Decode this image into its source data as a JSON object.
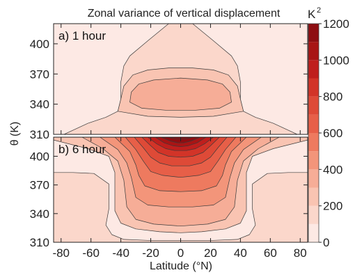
{
  "chart_data": {
    "type": "heatmap",
    "title": "Zonal variance of vertical displacement",
    "xlabel": "Latitude (°N)",
    "ylabel": "θ (K)",
    "x_ticks": [
      "-80",
      "-60",
      "-40",
      "-20",
      "0",
      "20",
      "40",
      "60",
      "80"
    ],
    "x_tick_values": [
      -80,
      -60,
      -40,
      -20,
      0,
      20,
      40,
      60,
      80
    ],
    "xlim": [
      -85,
      85
    ],
    "colorbar": {
      "unit": "K",
      "unit_superscript": "2",
      "tick_labels": [
        "0",
        "200",
        "400",
        "600",
        "800",
        "1000",
        "1200"
      ],
      "tick_values": [
        0,
        200,
        400,
        600,
        800,
        1000,
        1200
      ],
      "levels": [
        0,
        100,
        200,
        300,
        400,
        500,
        600,
        700,
        800,
        900,
        1000,
        1100,
        1200
      ],
      "colors": [
        "#fde9e4",
        "#fbd7cb",
        "#f9c4b2",
        "#f6ad97",
        "#f3957a",
        "#ee7a5f",
        "#e75f48",
        "#de4a37",
        "#d23428",
        "#bf1f1d",
        "#a81515",
        "#8e0e12"
      ]
    },
    "panels": [
      {
        "label": "a) 1 hour",
        "ylim": [
          310,
          420
        ],
        "y_ticks": [
          "310",
          "340",
          "370",
          "400"
        ],
        "y_tick_values": [
          310,
          340,
          370,
          400
        ],
        "contours": [
          {
            "level": 100,
            "lat": [
              -78,
              -62,
              -50,
              -42,
              -40,
              -40,
              -38,
              -34,
              -22,
              -8,
              8,
              22,
              34,
              38,
              40,
              40,
              42,
              50,
              62,
              78
            ],
            "theta": [
              310,
              321,
              327,
              333,
              345,
              362,
              378,
              388,
              403,
              420,
              420,
              403,
              388,
              378,
              362,
              345,
              333,
              327,
              321,
              310
            ]
          },
          {
            "level": 200,
            "lat": [
              -42,
              -40,
              -38,
              -32,
              -22,
              -8,
              8,
              22,
              32,
              38,
              40,
              42,
              22,
              0,
              -22
            ],
            "theta": [
              333,
              345,
              358,
              369,
              374,
              376,
              376,
              374,
              369,
              358,
              345,
              333,
              328,
              327,
              328
            ]
          },
          {
            "level": 300,
            "lat": [
              -34,
              -33,
              -28,
              -18,
              0,
              18,
              28,
              33,
              34,
              26,
              10,
              -10,
              -26
            ],
            "theta": [
              342,
              352,
              360,
              364,
              366,
              364,
              360,
              352,
              342,
              336,
              334,
              334,
              336
            ]
          }
        ]
      },
      {
        "label": "b) 6 hour",
        "ylim": [
          310,
          420
        ],
        "y_ticks": [
          "310",
          "340",
          "370",
          "400"
        ],
        "y_tick_values": [
          310,
          340,
          370,
          400
        ],
        "contours": [
          {
            "level": 100,
            "lat": [
              -85,
              -72,
              -58,
              -48,
              -48,
              -50,
              -46,
              -38,
              -22,
              -8,
              8,
              22,
              38,
              46,
              50,
              48,
              48,
              58,
              72,
              85,
              85,
              -85
            ],
            "theta": [
              383,
              383,
              382,
              371,
              345,
              328,
              318,
              313,
              312,
              312,
              312,
              312,
              313,
              318,
              328,
              345,
              371,
              382,
              383,
              383,
              310,
              310
            ]
          },
          {
            "level": 200,
            "lat": [
              -85,
              -62,
              -48,
              -44,
              -44,
              -40,
              -30,
              -14,
              0,
              14,
              30,
              40,
              44,
              44,
              48,
              62,
              85,
              85,
              -85
            ],
            "theta": [
              417,
              408,
              400,
              383,
              343,
              330,
              324,
              321,
              320,
              321,
              324,
              330,
              343,
              383,
              400,
              408,
              417,
              420,
              420
            ]
          },
          {
            "level": 300,
            "lat": [
              -66,
              -52,
              -42,
              -38,
              -36,
              -30,
              -18,
              0,
              18,
              30,
              36,
              38,
              42,
              52,
              66
            ],
            "theta": [
              420,
              408,
              395,
              375,
              347,
              334,
              329,
              327,
              329,
              334,
              347,
              375,
              395,
              408,
              420
            ]
          },
          {
            "level": 400,
            "lat": [
              -54,
              -42,
              -36,
              -33,
              -30,
              -22,
              -8,
              8,
              22,
              30,
              33,
              36,
              42,
              54
            ],
            "theta": [
              420,
              407,
              393,
              378,
              357,
              349,
              347,
              347,
              349,
              357,
              378,
              393,
              407,
              420
            ]
          },
          {
            "level": 500,
            "lat": [
              -44,
              -34,
              -30,
              -28,
              -24,
              -14,
              0,
              14,
              24,
              28,
              30,
              34,
              44
            ],
            "theta": [
              420,
              405,
              391,
              380,
              369,
              364,
              363,
              364,
              369,
              380,
              391,
              405,
              420
            ]
          },
          {
            "level": 600,
            "lat": [
              -37,
              -30,
              -25,
              -20,
              -12,
              0,
              12,
              20,
              25,
              30,
              37
            ],
            "theta": [
              420,
              407,
              395,
              384,
              380,
              378,
              380,
              384,
              395,
              407,
              420
            ]
          },
          {
            "level": 700,
            "lat": [
              -31,
              -25,
              -20,
              -14,
              -6,
              6,
              14,
              20,
              25,
              31
            ],
            "theta": [
              420,
              409,
              399,
              393,
              390,
              390,
              393,
              399,
              409,
              420
            ]
          },
          {
            "level": 800,
            "lat": [
              -26,
              -20,
              -15,
              -8,
              0,
              8,
              15,
              20,
              26
            ],
            "theta": [
              420,
              411,
              404,
              400,
              399,
              400,
              404,
              411,
              420
            ]
          },
          {
            "level": 900,
            "lat": [
              -22,
              -16,
              -10,
              -4,
              4,
              10,
              16,
              22
            ],
            "theta": [
              420,
              413,
              408,
              406,
              406,
              408,
              413,
              420
            ]
          },
          {
            "level": 1000,
            "lat": [
              -17,
              -11,
              -5,
              0,
              5,
              11,
              17
            ],
            "theta": [
              420,
              414,
              411,
              410,
              411,
              414,
              420
            ]
          },
          {
            "level": 1100,
            "lat": [
              -13,
              -7,
              -2,
              2,
              7,
              13
            ],
            "theta": [
              420,
              416,
              414,
              414,
              416,
              420
            ]
          },
          {
            "level": 1200,
            "lat": [
              -8,
              -3,
              3,
              8
            ],
            "theta": [
              420,
              418,
              418,
              420
            ]
          }
        ]
      }
    ]
  }
}
